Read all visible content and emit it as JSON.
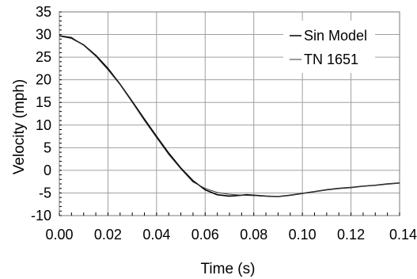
{
  "chart_data": {
    "type": "line",
    "title": "",
    "xlabel": "Time (s)",
    "ylabel": "Velocity (mph)",
    "xlim": [
      0,
      0.14
    ],
    "ylim": [
      -10,
      35
    ],
    "x_ticks": [
      0.0,
      0.02,
      0.04,
      0.06,
      0.08,
      0.1,
      0.12,
      0.14
    ],
    "x_tick_labels": [
      "0.00",
      "0.02",
      "0.04",
      "0.06",
      "0.08",
      "0.10",
      "0.12",
      "0.14"
    ],
    "y_ticks": [
      -10,
      -5,
      0,
      5,
      10,
      15,
      20,
      25,
      30,
      35
    ],
    "y_tick_labels": [
      "-10",
      "-5",
      "0",
      "5",
      "10",
      "15",
      "20",
      "25",
      "30",
      "35"
    ],
    "grid": true,
    "legend_position": "top-right",
    "series": [
      {
        "name": "Sin Model",
        "color": "#000000",
        "x": [
          0.0,
          0.005,
          0.01,
          0.015,
          0.02,
          0.025,
          0.03,
          0.035,
          0.04,
          0.045,
          0.05,
          0.055,
          0.06,
          0.065,
          0.07,
          0.075,
          0.077,
          0.08,
          0.085,
          0.09,
          0.095,
          0.1,
          0.105,
          0.11,
          0.115,
          0.12,
          0.125,
          0.13,
          0.135,
          0.14
        ],
        "y": [
          29.7,
          29.2,
          27.7,
          25.4,
          22.5,
          19.0,
          15.2,
          11.3,
          7.5,
          3.8,
          0.5,
          -2.3,
          -4.3,
          -5.4,
          -5.7,
          -5.5,
          -5.4,
          -5.5,
          -5.7,
          -5.8,
          -5.5,
          -5.1,
          -4.7,
          -4.3,
          -4.0,
          -3.8,
          -3.5,
          -3.3,
          -3.0,
          -2.8
        ]
      },
      {
        "name": "TN 1651",
        "color": "#3a3a3a",
        "x": [
          0.0,
          0.005,
          0.01,
          0.015,
          0.02,
          0.025,
          0.03,
          0.035,
          0.04,
          0.045,
          0.05,
          0.055,
          0.06,
          0.065,
          0.07,
          0.075,
          0.08,
          0.085,
          0.09,
          0.095,
          0.1,
          0.105,
          0.11,
          0.115,
          0.12,
          0.125,
          0.13,
          0.135,
          0.14
        ],
        "y": [
          29.8,
          29.4,
          27.6,
          25.2,
          22.2,
          18.9,
          15.0,
          11.0,
          7.2,
          3.5,
          0.3,
          -2.6,
          -4.0,
          -4.9,
          -5.3,
          -5.5,
          -5.6,
          -5.7,
          -5.8,
          -5.5,
          -5.1,
          -4.7,
          -4.3,
          -4.0,
          -3.8,
          -3.5,
          -3.3,
          -3.0,
          -2.8
        ]
      }
    ]
  }
}
